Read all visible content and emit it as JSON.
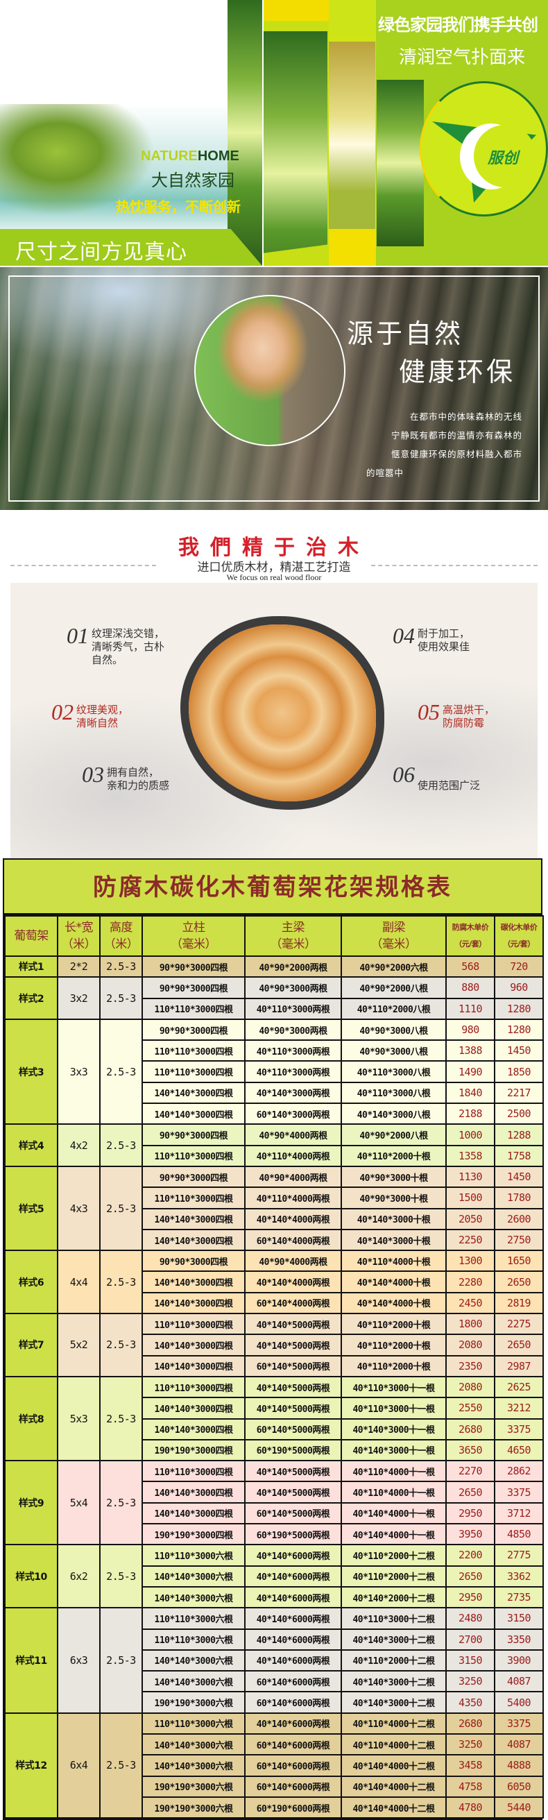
{
  "banner1": {
    "nature": "NATURE",
    "home": "HOME",
    "title": "大自然家园",
    "slogan": "热忱服务，不断创新",
    "band_text": "尺寸之间方见真心",
    "right_title": "绿色家园我们携手共创",
    "right_subtitle": "清润空气扑面来",
    "logo_text": "服创"
  },
  "banner2": {
    "title1": "源于自然",
    "title2": "健康环保",
    "paragraph": [
      "在都市中的体味森林的无线",
      "宁静既有都市的温情亦有森林的",
      "惬意健康环保的原材料融入都市",
      "的喧嚣中"
    ]
  },
  "features": {
    "heading": "我們精于治木",
    "subtitle": "进口优质木材，精湛工艺打造",
    "english": "We focus on real wood floor",
    "items": [
      {
        "num": "01",
        "lines": [
          "纹理深浅交错，",
          "清晰秀气，古朴",
          "自然。"
        ]
      },
      {
        "num": "02",
        "lines": [
          "纹理美观，",
          "清晰自然"
        ]
      },
      {
        "num": "03",
        "lines": [
          "拥有自然，",
          "亲和力的质感"
        ]
      },
      {
        "num": "04",
        "lines": [
          "耐于加工，",
          "使用效果佳"
        ]
      },
      {
        "num": "05",
        "lines": [
          "高温烘干，",
          "防腐防霉"
        ]
      },
      {
        "num": "06",
        "lines": [
          "",
          "使用范围广泛"
        ]
      }
    ]
  },
  "spec_table": {
    "title": "防腐木碳化木葡萄架花架规格表",
    "headers": [
      {
        "l1": "葡萄架",
        "l2": ""
      },
      {
        "l1": "长*宽",
        "l2": "（米）"
      },
      {
        "l1": "高度",
        "l2": "（米）"
      },
      {
        "l1": "立柱",
        "l2": "（毫米）"
      },
      {
        "l1": "主梁",
        "l2": "（毫米）"
      },
      {
        "l1": "副梁",
        "l2": "（毫米）"
      },
      {
        "l1": "防腐木单价",
        "l2": "（元/套）"
      },
      {
        "l1": "碳化木单价",
        "l2": "（元/套）"
      }
    ],
    "colors": {
      "header": "#cde048",
      "price": "#9b1b1b"
    },
    "groups": [
      {
        "style": "样式1",
        "size": "2*2",
        "height": "2.5-3",
        "bg": "#e3cf9a",
        "rows": [
          [
            "90*90*3000四根",
            "40*90*2000两根",
            "40*90*2000六根",
            "568",
            "720"
          ]
        ]
      },
      {
        "style": "样式2",
        "size": "3x2",
        "height": "2.5-3",
        "bg": "#e8e5df",
        "rows": [
          [
            "90*90*3000四根",
            "40*90*3000两根",
            "40*90*2000八根",
            "880",
            "960"
          ],
          [
            "110*110*3000四根",
            "40*110*3000两根",
            "40*110*2000八根",
            "1110",
            "1280"
          ]
        ]
      },
      {
        "style": "样式3",
        "size": "3x3",
        "height": "2.5-3",
        "bg": "#fdfde4",
        "rows": [
          [
            "90*90*3000四根",
            "40*90*3000两根",
            "40*90*3000八根",
            "980",
            "1280"
          ],
          [
            "110*110*3000四根",
            "40*110*3000两根",
            "40*90*3000八根",
            "1388",
            "1450"
          ],
          [
            "110*110*3000四根",
            "40*110*3000两根",
            "40*110*3000八根",
            "1490",
            "1850"
          ],
          [
            "140*140*3000四根",
            "40*140*3000两根",
            "40*110*3000八根",
            "1840",
            "2217"
          ],
          [
            "140*140*3000四根",
            "60*140*3000两根",
            "40*140*3000八根",
            "2188",
            "2500"
          ]
        ]
      },
      {
        "style": "样式4",
        "size": "4x2",
        "height": "2.5-3",
        "bg": "#eaf5c0",
        "rows": [
          [
            "90*90*3000四根",
            "40*90*4000两根",
            "40*90*2000八根",
            "1000",
            "1288"
          ],
          [
            "110*110*3000四根",
            "40*110*4000两根",
            "40*110*2000十根",
            "1358",
            "1758"
          ]
        ]
      },
      {
        "style": "样式5",
        "size": "4x3",
        "height": "2.5-3",
        "bg": "#f3e2c8",
        "rows": [
          [
            "90*90*3000四根",
            "40*90*4000两根",
            "40*90*3000十根",
            "1130",
            "1450"
          ],
          [
            "110*110*3000四根",
            "40*110*4000两根",
            "40*90*3000十根",
            "1500",
            "1780"
          ],
          [
            "140*140*3000四根",
            "40*140*4000两根",
            "40*140*3000十根",
            "2050",
            "2600"
          ],
          [
            "140*140*3000四根",
            "60*140*4000两根",
            "40*140*3000十根",
            "2250",
            "2750"
          ]
        ]
      },
      {
        "style": "样式6",
        "size": "4x4",
        "height": "2.5-3",
        "bg": "#fde2b3",
        "rows": [
          [
            "90*90*3000四根",
            "40*90*4000两根",
            "40*110*4000十根",
            "1300",
            "1650"
          ],
          [
            "140*140*3000四根",
            "40*140*4000两根",
            "40*140*4000十根",
            "2280",
            "2650"
          ],
          [
            "140*140*3000四根",
            "60*140*4000两根",
            "40*140*4000十根",
            "2450",
            "2819"
          ]
        ]
      },
      {
        "style": "样式7",
        "size": "5x2",
        "height": "2.5-3",
        "bg": "#f3e2c8",
        "rows": [
          [
            "110*110*3000四根",
            "40*140*5000两根",
            "40*110*2000十根",
            "1800",
            "2275"
          ],
          [
            "140*140*3000四根",
            "40*140*5000两根",
            "40*110*2000十根",
            "2080",
            "2650"
          ],
          [
            "140*140*3000四根",
            "60*140*5000两根",
            "40*110*2000十根",
            "2350",
            "2987"
          ]
        ]
      },
      {
        "style": "样式8",
        "size": "5x3",
        "height": "2.5-3",
        "bg": "#ebf3b5",
        "rows": [
          [
            "110*110*3000四根",
            "40*140*5000两根",
            "40*110*3000十一根",
            "2080",
            "2625"
          ],
          [
            "140*140*3000四根",
            "40*140*5000两根",
            "40*110*3000十一根",
            "2550",
            "3212"
          ],
          [
            "140*140*3000四根",
            "60*140*5000两根",
            "40*140*3000十一根",
            "2680",
            "3375"
          ],
          [
            "190*190*3000四根",
            "60*190*5000两根",
            "40*140*3000十一根",
            "3650",
            "4650"
          ]
        ]
      },
      {
        "style": "样式9",
        "size": "5x4",
        "height": "2.5-3",
        "bg": "#fde0dc",
        "rows": [
          [
            "110*110*3000四根",
            "40*140*5000两根",
            "40*110*4000十一根",
            "2270",
            "2862"
          ],
          [
            "140*140*3000四根",
            "40*140*5000两根",
            "40*110*4000十一根",
            "2650",
            "3375"
          ],
          [
            "140*140*3000四根",
            "60*140*5000两根",
            "40*140*4000十一根",
            "2950",
            "3712"
          ],
          [
            "190*190*3000四根",
            "60*190*5000两根",
            "40*140*4000十一根",
            "3950",
            "4850"
          ]
        ]
      },
      {
        "style": "样式10",
        "size": "6x2",
        "height": "2.5-3",
        "bg": "#ebf3b5",
        "rows": [
          [
            "110*110*3000六根",
            "40*140*6000两根",
            "40*110*2000十二根",
            "2200",
            "2775"
          ],
          [
            "140*140*3000六根",
            "40*140*6000两根",
            "40*110*2000十二根",
            "2650",
            "3362"
          ],
          [
            "140*140*3000六根",
            "40*140*6000两根",
            "40*140*2000十二根",
            "2950",
            "2735"
          ]
        ]
      },
      {
        "style": "样式11",
        "size": "6x3",
        "height": "2.5-3",
        "bg": "#e9e5df",
        "rows": [
          [
            "110*110*3000六根",
            "40*140*6000两根",
            "40*110*3000十二根",
            "2480",
            "3150"
          ],
          [
            "110*110*3000六根",
            "40*140*6000两根",
            "40*140*3000十二根",
            "2700",
            "3350"
          ],
          [
            "140*140*3000六根",
            "40*140*6000两根",
            "40*110*2000十二根",
            "3150",
            "3900"
          ],
          [
            "140*140*3000六根",
            "60*140*6000两根",
            "40*140*3000十二根",
            "3250",
            "4087"
          ],
          [
            "190*190*3000六根",
            "60*140*6000两根",
            "40*140*3000十二根",
            "4350",
            "5400"
          ]
        ]
      },
      {
        "style": "样式12",
        "size": "6x4",
        "height": "2.5-3",
        "bg": "#e3cf9a",
        "rows": [
          [
            "110*110*3000六根",
            "40*140*6000两根",
            "40*110*4000十二根",
            "2680",
            "3375"
          ],
          [
            "140*140*3000六根",
            "60*140*6000两根",
            "40*110*4000十二根",
            "3250",
            "4087"
          ],
          [
            "140*140*3000六根",
            "60*140*6000两根",
            "40*140*4000十二根",
            "3458",
            "4888"
          ],
          [
            "190*190*3000六根",
            "60*140*6000两根",
            "40*140*4000十二根",
            "4758",
            "6050"
          ],
          [
            "190*190*3000六根",
            "60*190*6000两根",
            "40*140*4000十二根",
            "4780",
            "5440"
          ]
        ]
      }
    ]
  }
}
